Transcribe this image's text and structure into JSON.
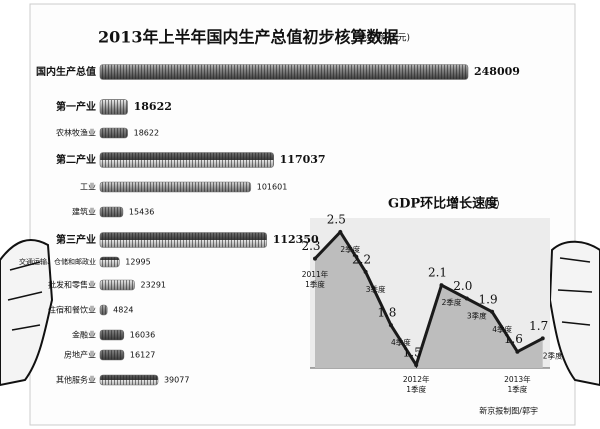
{
  "chart_data": [
    {
      "type": "hbar",
      "title": "2013年上半年国内生产总值初步核算数据",
      "unit": "绝对额(亿元)",
      "categories": [
        "国内生产总值",
        "第一产业",
        "农林牧渔业",
        "第二产业",
        "工业",
        "建筑业",
        "第三产业",
        "交通运输、仓储和邮政业",
        "批发和零售业",
        "住宿和餐饮业",
        "金融业",
        "房地产业",
        "其他服务业"
      ],
      "values": [
        248009,
        18622,
        18622,
        117037,
        101601,
        15436,
        112350,
        12995,
        23291,
        4824,
        16036,
        16127,
        39077
      ],
      "color": "#6e6e6e"
    },
    {
      "type": "area",
      "title": "GDP环比增长速度",
      "unit": "(%)",
      "categories": [
        [
          "2011年",
          "1季度"
        ],
        [
          "2季度"
        ],
        [
          "3季度"
        ],
        [
          "4季度"
        ],
        [
          "2012年",
          "1季度"
        ],
        [
          "2季度"
        ],
        [
          "3季度"
        ],
        [
          "4季度"
        ],
        [
          "2013年",
          "1季度"
        ],
        [
          "2季度"
        ]
      ],
      "values": [
        2.3,
        2.5,
        2.2,
        1.8,
        1.5,
        2.1,
        2.0,
        1.9,
        1.6,
        1.7
      ],
      "value_labels": [
        "2.3",
        "2.5",
        "2.2",
        "1.8",
        "1.5",
        "2.1",
        "2.0",
        "1.9",
        "1.6",
        "1.7"
      ],
      "color": "#1a1a1a",
      "fill": "#bdbdbd"
    }
  ],
  "source": "新京报制图/郭宇"
}
